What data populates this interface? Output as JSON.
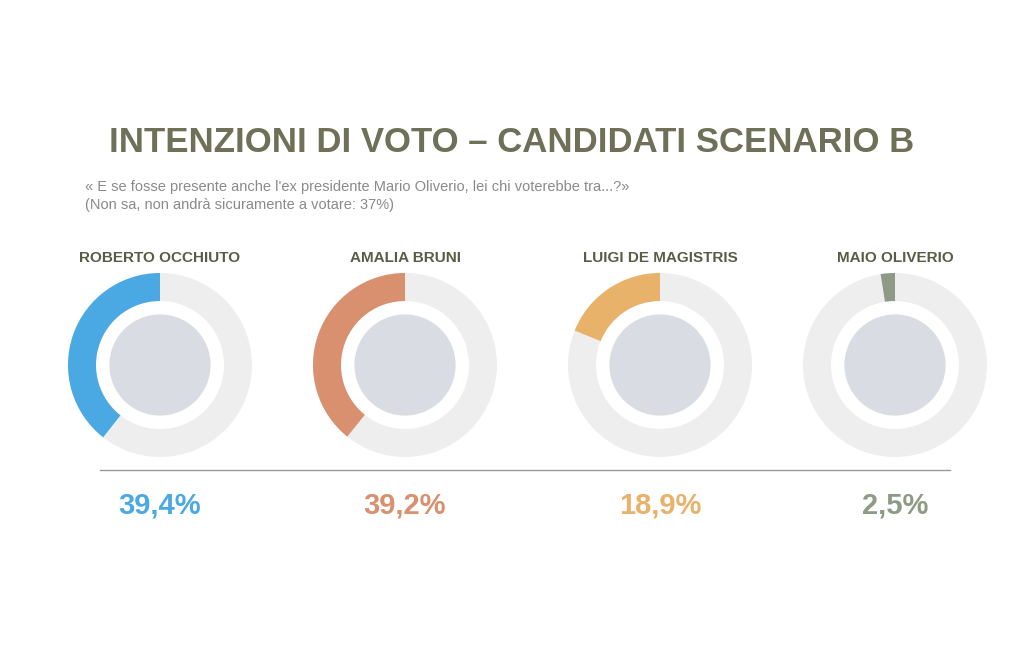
{
  "chart_data": {
    "type": "gauge",
    "title": "INTENZIONI DI VOTO – CANDIDATI SCENARIO B",
    "subtitle": [
      "« E se fosse presente anche l'ex presidente Mario Oliverio, lei chi voterebbe tra...?»",
      "(Non sa, non andrà sicuramente a votare: 37%)"
    ],
    "categories": [
      "ROBERTO OCCHIUTO",
      "AMALIA BRUNI",
      "LUIGI DE MAGISTRIS",
      "MAIO OLIVERIO"
    ],
    "values": [
      39.4,
      39.2,
      18.9,
      2.5
    ],
    "value_labels": [
      "39,4%",
      "39,2%",
      "18,9%",
      "2,5%"
    ],
    "colors": [
      "#4aa8e3",
      "#d9906f",
      "#e9b26b",
      "#8e9b84"
    ],
    "ylim": [
      0,
      100
    ],
    "data_labels": true,
    "tick_labels": false
  }
}
